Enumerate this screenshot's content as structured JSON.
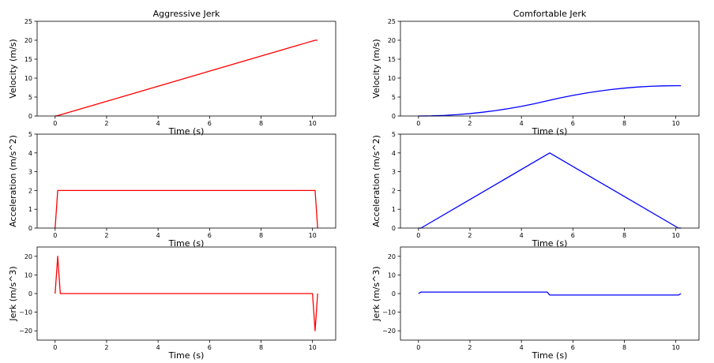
{
  "figure": {
    "columns": [
      {
        "title": "Aggressive Jerk",
        "color": "#ff0000"
      },
      {
        "title": "Comfortable Jerk",
        "color": "#0000ff"
      }
    ]
  },
  "chart_data": [
    {
      "type": "line",
      "panel": "aggressive-velocity",
      "title": "Aggressive Jerk",
      "xlabel": "Time (s)",
      "ylabel": "Velocity (m/s)",
      "xlim": [
        -0.7,
        10.9
      ],
      "ylim": [
        0,
        25
      ],
      "xticks": [
        0,
        2,
        4,
        6,
        8,
        10
      ],
      "yticks": [
        0,
        5,
        10,
        15,
        20,
        25
      ],
      "grid": false,
      "series": [
        {
          "color": "#ff0000",
          "x": [
            0,
            0.1,
            10.1,
            10.2
          ],
          "y": [
            0,
            0.1,
            20,
            20
          ]
        }
      ]
    },
    {
      "type": "line",
      "panel": "comfortable-velocity",
      "title": "Comfortable Jerk",
      "xlabel": "Time (s)",
      "ylabel": "Velocity (m/s)",
      "xlim": [
        -0.7,
        10.9
      ],
      "ylim": [
        0,
        25
      ],
      "xticks": [
        0,
        2,
        4,
        6,
        8,
        10
      ],
      "yticks": [
        0,
        5,
        10,
        15,
        20,
        25
      ],
      "grid": false,
      "series": [
        {
          "color": "#0000ff",
          "x": [
            0,
            0.5,
            1,
            1.5,
            2,
            2.5,
            3,
            3.5,
            4,
            4.5,
            5,
            5.5,
            6,
            6.5,
            7,
            7.5,
            8,
            8.5,
            9,
            9.5,
            10,
            10.2
          ],
          "y": [
            0,
            0.04,
            0.16,
            0.36,
            0.64,
            1.0,
            1.44,
            1.96,
            2.56,
            3.24,
            4.0,
            4.76,
            5.44,
            6.04,
            6.56,
            7.0,
            7.36,
            7.64,
            7.84,
            7.96,
            8.0,
            8.0
          ]
        }
      ]
    },
    {
      "type": "line",
      "panel": "aggressive-acceleration",
      "xlabel": "Time (s)",
      "ylabel": "Acceleration (m/s^2)",
      "xlim": [
        -0.7,
        10.9
      ],
      "ylim": [
        0,
        5
      ],
      "xticks": [
        0,
        2,
        4,
        6,
        8,
        10
      ],
      "yticks": [
        0,
        1,
        2,
        3,
        4,
        5
      ],
      "grid": false,
      "series": [
        {
          "color": "#ff0000",
          "x": [
            0,
            0.1,
            10.1,
            10.2
          ],
          "y": [
            0,
            2,
            2,
            0
          ]
        }
      ]
    },
    {
      "type": "line",
      "panel": "comfortable-acceleration",
      "xlabel": "Time (s)",
      "ylabel": "Acceleration (m/s^2)",
      "xlim": [
        -0.7,
        10.9
      ],
      "ylim": [
        0,
        5
      ],
      "xticks": [
        0,
        2,
        4,
        6,
        8,
        10
      ],
      "yticks": [
        0,
        1,
        2,
        3,
        4,
        5
      ],
      "grid": false,
      "series": [
        {
          "color": "#0000ff",
          "x": [
            0,
            0.1,
            5.0,
            5.1,
            5.2,
            10.1,
            10.2
          ],
          "y": [
            0,
            0,
            3.92,
            4.0,
            3.92,
            0,
            0
          ]
        }
      ]
    },
    {
      "type": "line",
      "panel": "aggressive-jerk",
      "xlabel": "Time (s)",
      "ylabel": "Jerk (m/s^3)",
      "xlim": [
        -0.7,
        10.9
      ],
      "ylim": [
        -25,
        25
      ],
      "xticks": [
        0,
        2,
        4,
        6,
        8,
        10
      ],
      "yticks": [
        -20,
        -10,
        0,
        10,
        20
      ],
      "grid": false,
      "series": [
        {
          "color": "#ff0000",
          "x": [
            0,
            0.1,
            0.2,
            10.0,
            10.1,
            10.2
          ],
          "y": [
            0,
            20,
            0,
            0,
            -20,
            0
          ]
        }
      ]
    },
    {
      "type": "line",
      "panel": "comfortable-jerk",
      "xlabel": "Time (s)",
      "ylabel": "Jerk (m/s^3)",
      "xlim": [
        -0.7,
        10.9
      ],
      "ylim": [
        -25,
        25
      ],
      "xticks": [
        0,
        2,
        4,
        6,
        8,
        10
      ],
      "yticks": [
        -20,
        -10,
        0,
        10,
        20
      ],
      "grid": false,
      "series": [
        {
          "color": "#0000ff",
          "x": [
            0,
            0.1,
            5.0,
            5.1,
            10.1,
            10.2
          ],
          "y": [
            0,
            0.8,
            0.8,
            -0.8,
            -0.8,
            0
          ]
        }
      ]
    }
  ]
}
